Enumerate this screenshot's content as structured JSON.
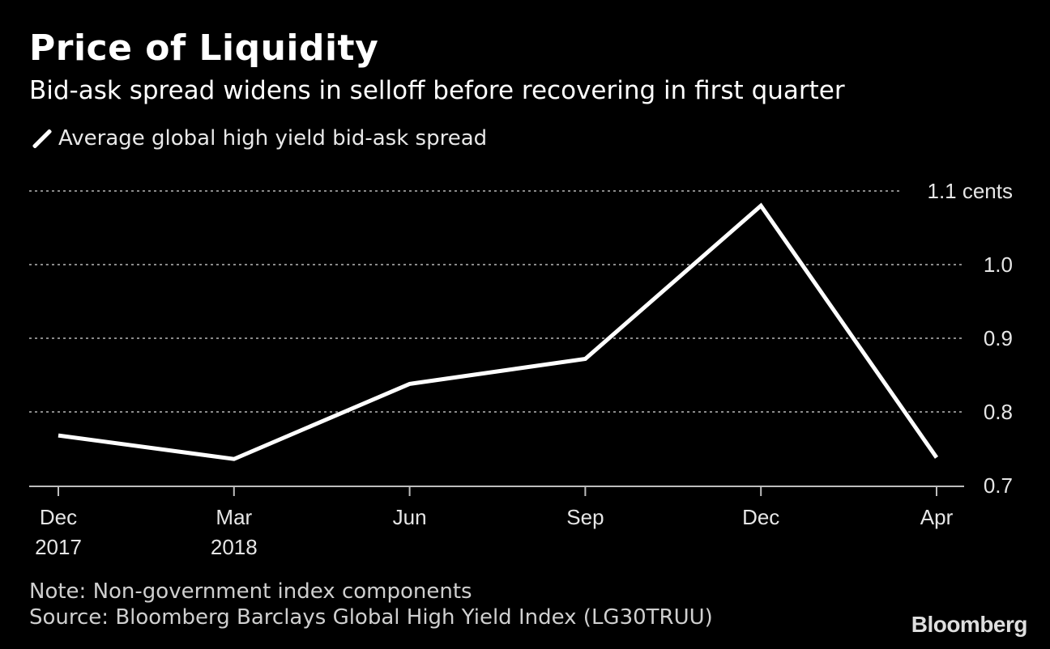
{
  "chart_data": {
    "type": "line",
    "title": "Price of Liquidity",
    "subtitle": "Bid-ask spread widens in selloff before recovering in first quarter",
    "legend": [
      "Average global high yield bid-ask spread"
    ],
    "categories": [
      "Dec 2017",
      "Mar 2018",
      "Jun",
      "Sep",
      "Dec",
      "Apr"
    ],
    "x_tick_labels": [
      [
        "Dec",
        "2017"
      ],
      [
        "Mar",
        "2018"
      ],
      [
        "Jun",
        ""
      ],
      [
        "Sep",
        ""
      ],
      [
        "Dec",
        ""
      ],
      [
        "Apr",
        ""
      ]
    ],
    "series": [
      {
        "name": "Average global high yield bid-ask spread",
        "values": [
          0.768,
          0.736,
          0.838,
          0.872,
          1.08,
          0.738
        ]
      }
    ],
    "ylim": [
      0.7,
      1.1
    ],
    "y_ticks": [
      0.7,
      0.8,
      0.9,
      1.0,
      1.1
    ],
    "y_tick_labels": [
      "0.7",
      "0.8",
      "0.9",
      "1.0",
      "1.1 cents"
    ],
    "ylabel": "cents",
    "xlabel": "",
    "grid": true,
    "y_axis_side": "right"
  },
  "footer": {
    "note": "Note: Non-government index components",
    "source": "Source: Bloomberg Barclays Global High Yield Index (LG30TRUU)",
    "brand": "Bloomberg"
  },
  "colors": {
    "background": "#000000",
    "line": "#ffffff",
    "grid": "#8a8a8a",
    "text": "#ffffff"
  }
}
